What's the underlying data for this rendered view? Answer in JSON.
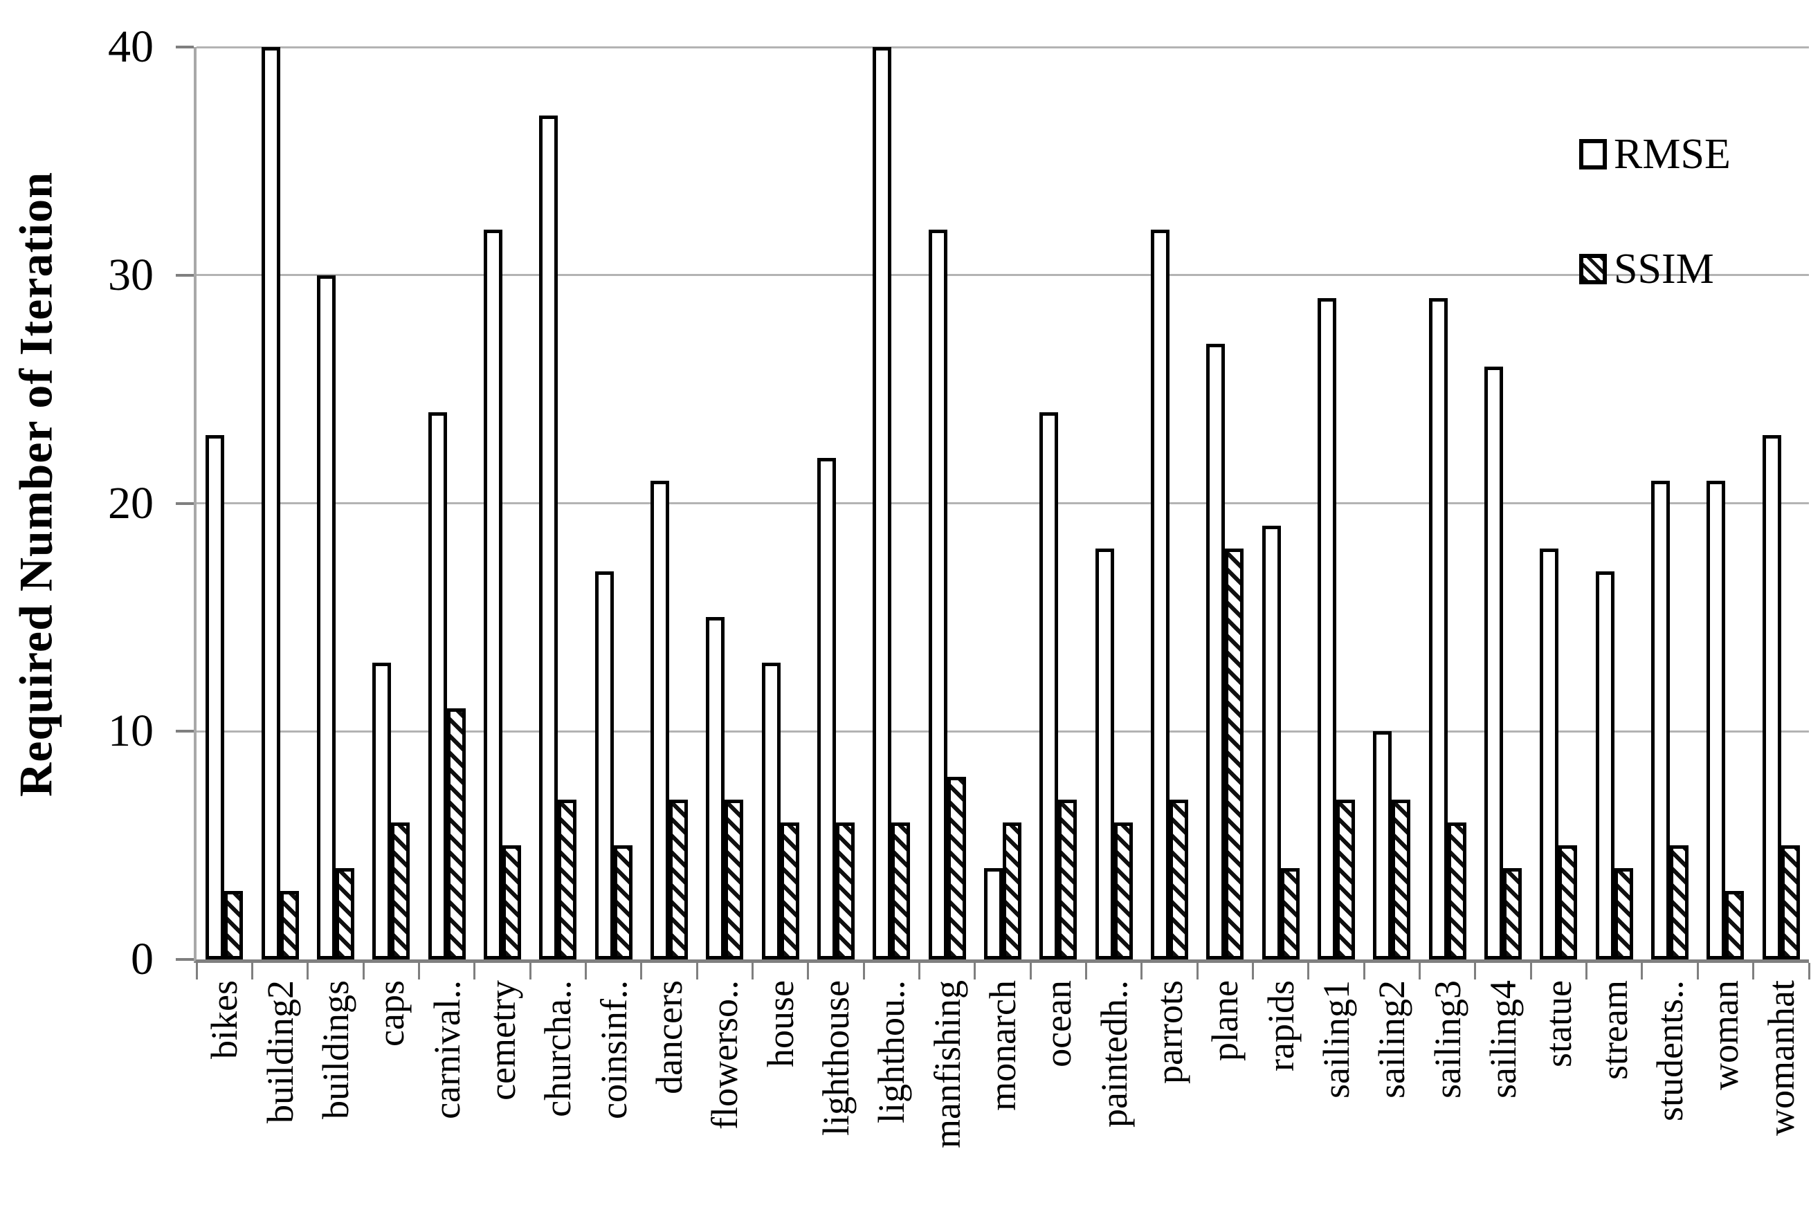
{
  "chart_data": {
    "type": "bar",
    "title": "",
    "ylabel": "Required Number of Iteration",
    "xlabel": "",
    "ylim": [
      0,
      40
    ],
    "yticks": [
      0,
      10,
      20,
      30,
      40
    ],
    "grid": true,
    "legend_position": "top-right",
    "categories": [
      "bikes",
      "building2",
      "buildings",
      "caps",
      "carnival..",
      "cemetry",
      "churcha..",
      "coinsinf..",
      "dancers",
      "flowerso..",
      "house",
      "lighthouse",
      "lighthou..",
      "manfishing",
      "monarch",
      "ocean",
      "paintedh..",
      "parrots",
      "plane",
      "rapids",
      "sailing1",
      "sailing2",
      "sailing3",
      "sailing4",
      "statue",
      "stream",
      "students..",
      "woman",
      "womanhat"
    ],
    "series": [
      {
        "name": "RMSE",
        "style": "outlined-white",
        "values": [
          23,
          40,
          30,
          13,
          24,
          32,
          37,
          17,
          21,
          15,
          13,
          22,
          40,
          32,
          4,
          24,
          18,
          32,
          27,
          19,
          29,
          10,
          29,
          26,
          18,
          17,
          21,
          21,
          23
        ]
      },
      {
        "name": "SSIM",
        "style": "hatched-diagonal",
        "values": [
          3,
          3,
          4,
          6,
          11,
          5,
          7,
          5,
          7,
          7,
          6,
          6,
          6,
          8,
          6,
          7,
          6,
          7,
          18,
          4,
          7,
          7,
          6,
          4,
          5,
          4,
          5,
          3,
          5
        ]
      }
    ],
    "colors": {
      "bar_fill": "#ffffff",
      "bar_border": "#000000",
      "gridline": "#b3b3b3",
      "axis": "#7f7f7f",
      "text": "#000000"
    }
  },
  "y_axis": {
    "tick_labels": [
      "0",
      "10",
      "20",
      "30",
      "40"
    ]
  },
  "legend": {
    "items": [
      {
        "label": "RMSE"
      },
      {
        "label": "SSIM"
      }
    ]
  }
}
